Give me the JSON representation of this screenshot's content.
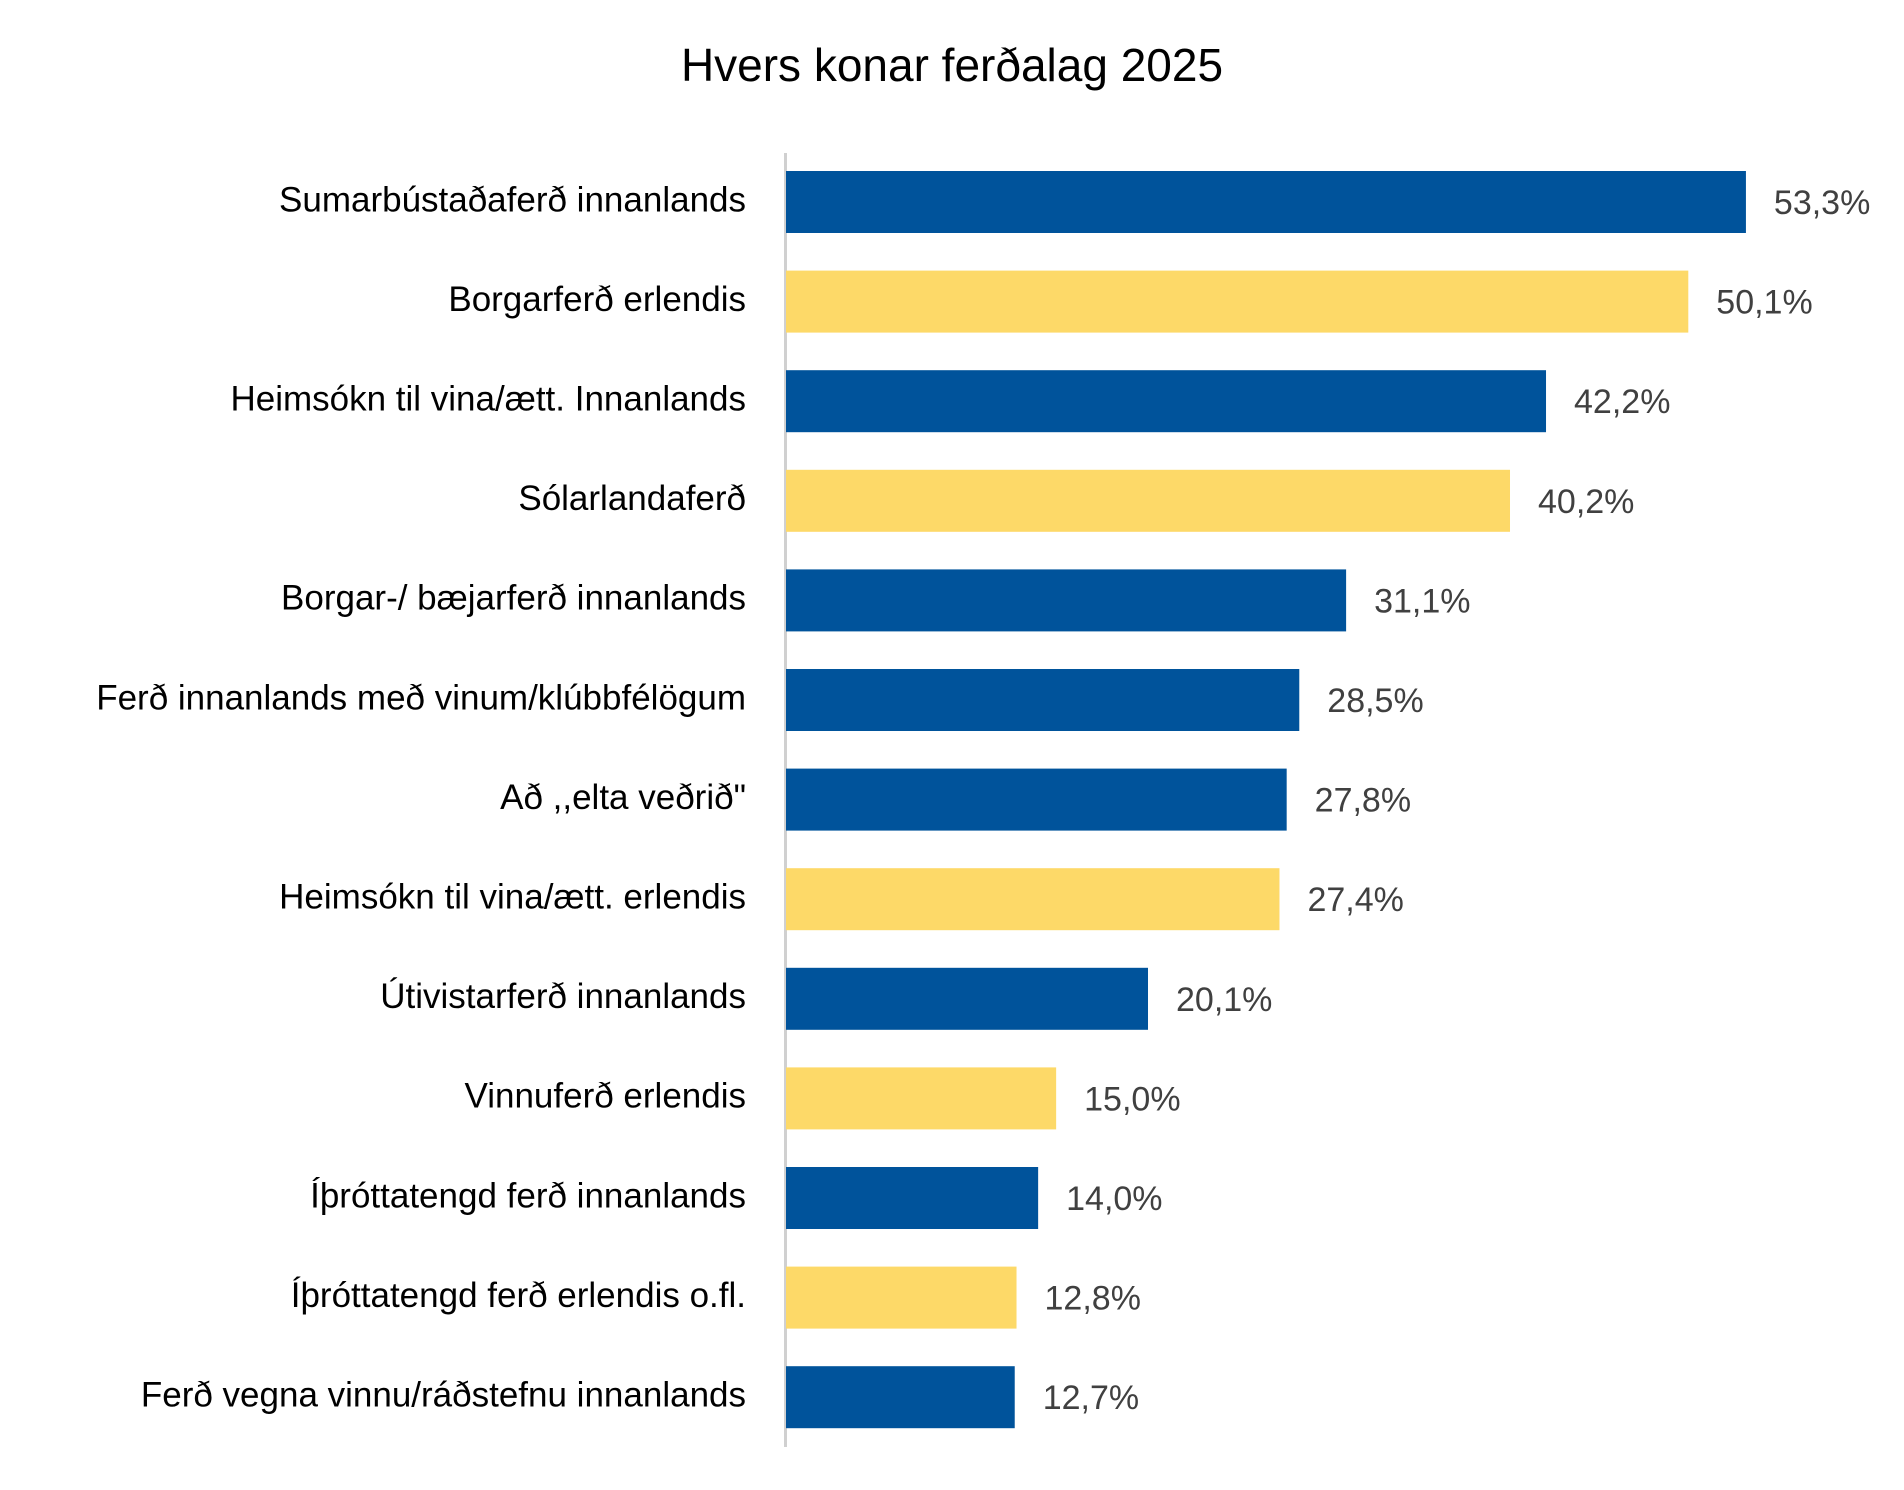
{
  "chart_data": {
    "type": "bar",
    "orientation": "horizontal",
    "title": "Hvers konar ferðalag 2025",
    "xlabel": "",
    "ylabel": "",
    "xlim": [
      0,
      60
    ],
    "grid": false,
    "legend": "none",
    "categories": [
      "Sumarbústaðaferð innanlands",
      "Borgarferð erlendis",
      "Heimsókn til vina/ætt. Innanlands",
      "Sólarlandaferð",
      "Borgar-/ bæjarferð innanlands",
      "Ferð innanlands með vinum/klúbbfélögum",
      "Að ,,elta veðrið\"",
      "Heimsókn til vina/ætt. erlendis",
      "Útivistarferð innanlands",
      "Vinnuferð erlendis",
      "Íþróttatengd ferð innanlands",
      "Íþróttatengd ferð erlendis o.fl.",
      "Ferð vegna vinnu/ráðstefnu innanlands"
    ],
    "values": [
      53.3,
      50.1,
      42.2,
      40.2,
      31.1,
      28.5,
      27.8,
      27.4,
      20.1,
      15.0,
      14.0,
      12.8,
      12.7
    ],
    "value_labels": [
      "53,3%",
      "50,1%",
      "42,2%",
      "40,2%",
      "31,1%",
      "28,5%",
      "27,8%",
      "27,4%",
      "20,1%",
      "15,0%",
      "14,0%",
      "12,8%",
      "12,7%"
    ],
    "bar_colors": [
      "#00539b",
      "#fdd968",
      "#00539b",
      "#fdd968",
      "#00539b",
      "#00539b",
      "#00539b",
      "#fdd968",
      "#00539b",
      "#fdd968",
      "#00539b",
      "#fdd968",
      "#00539b"
    ]
  },
  "colors": {
    "blue": "#00539b",
    "yellow": "#fdd968",
    "axis": "#d0d0d0",
    "label_text": "#000000",
    "value_text": "#404040"
  }
}
